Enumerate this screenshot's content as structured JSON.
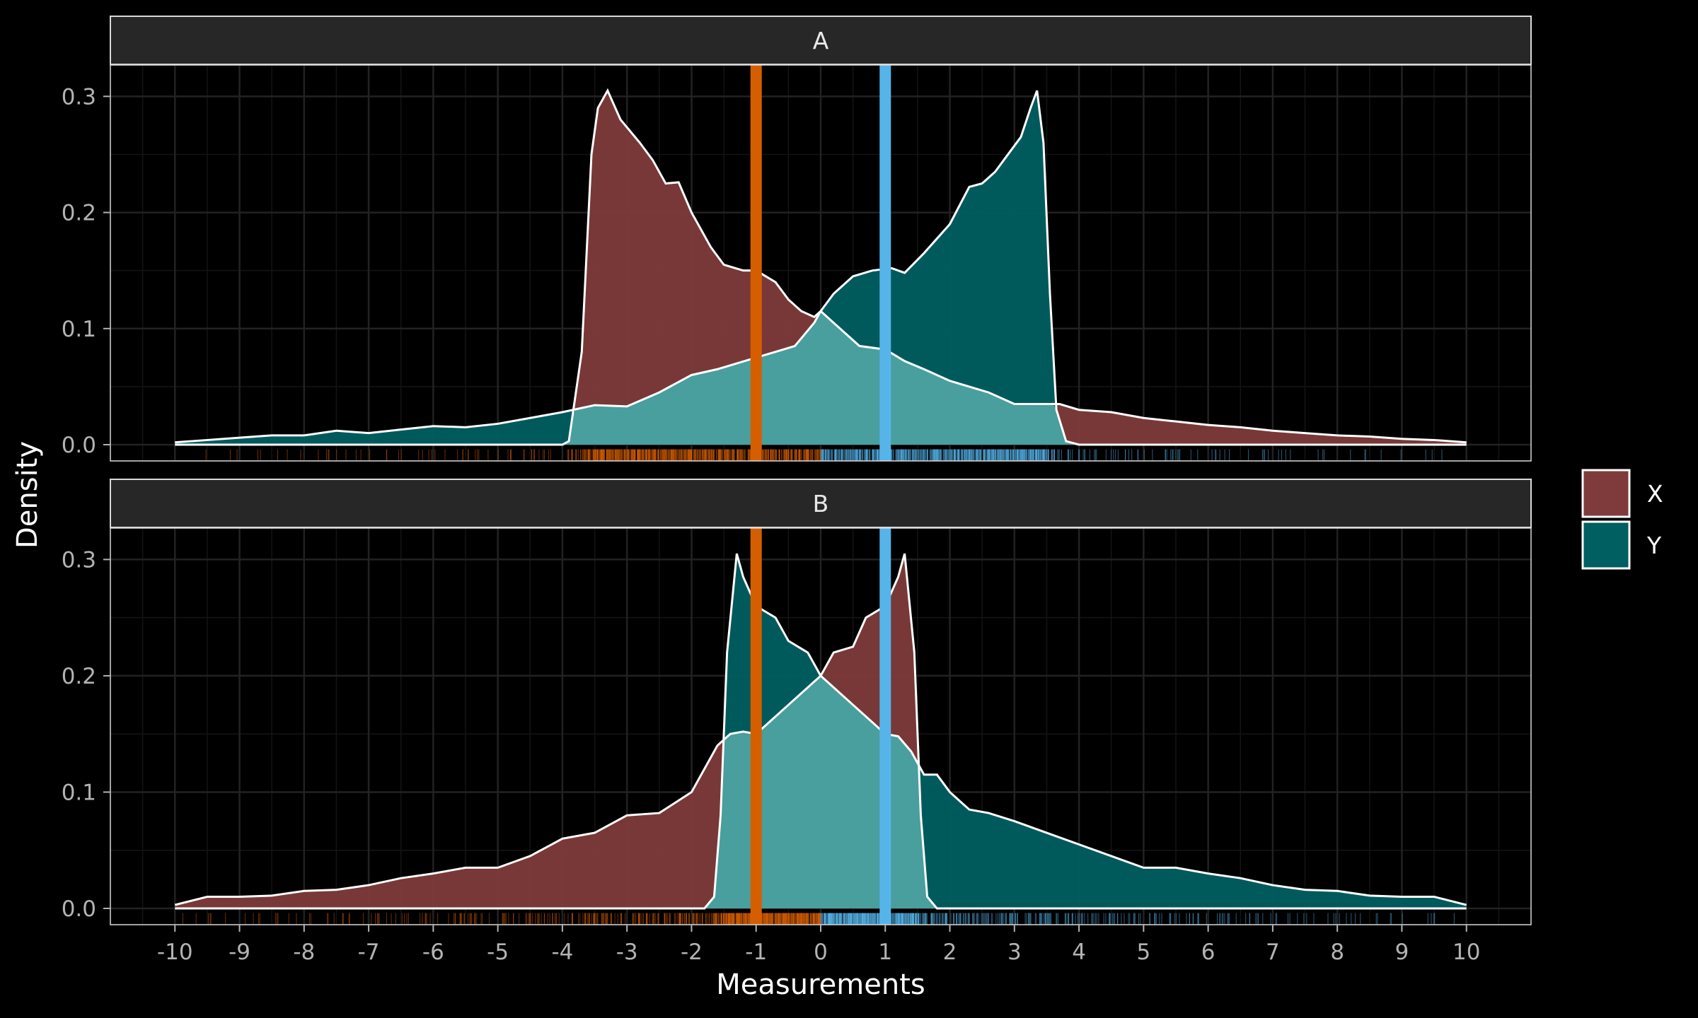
{
  "chart_data": {
    "type": "area",
    "subtype": "faceted-density",
    "xlabel": "Measurements",
    "ylabel": "Density",
    "xlim": [
      -11,
      11
    ],
    "ylim": [
      -0.014,
      0.327
    ],
    "x_ticks": [
      -10,
      -9,
      -8,
      -7,
      -6,
      -5,
      -4,
      -3,
      -2,
      -1,
      0,
      1,
      2,
      3,
      4,
      5,
      6,
      7,
      8,
      9,
      10
    ],
    "x_tick_labels": [
      "-10",
      "-9",
      "-8",
      "-7",
      "-6",
      "-5",
      "-4",
      "-3",
      "-2",
      "-1",
      "0",
      "1",
      "2",
      "3",
      "4",
      "5",
      "6",
      "7",
      "8",
      "9",
      "10"
    ],
    "y_ticks": [
      0.0,
      0.1,
      0.2,
      0.3
    ],
    "y_tick_labels": [
      "0.0",
      "0.1",
      "0.2",
      "0.3"
    ],
    "grid": true,
    "legend_position": "right",
    "legend": [
      {
        "name": "X",
        "color": "#7f3b3b"
      },
      {
        "name": "Y",
        "color": "#005f61"
      }
    ],
    "colors": {
      "background": "#000000",
      "strip_fill": "#272727",
      "outline": "#ffffff",
      "overlap": "#5fb5b2",
      "vline_orange": "#d55e00",
      "vline_blue": "#56b4e9"
    },
    "vlines": [
      {
        "x": -1,
        "color": "#d55e00"
      },
      {
        "x": 1,
        "color": "#56b4e9"
      }
    ],
    "panels": [
      {
        "label": "A",
        "series": [
          {
            "name": "X",
            "points": [
              [
                -10,
                0
              ],
              [
                -9.5,
                0
              ],
              [
                -8,
                0
              ],
              [
                -6,
                0
              ],
              [
                -4,
                0
              ],
              [
                -3.9,
                0.003
              ],
              [
                -3.7,
                0.08
              ],
              [
                -3.55,
                0.25
              ],
              [
                -3.45,
                0.29
              ],
              [
                -3.3,
                0.305
              ],
              [
                -3.1,
                0.28
              ],
              [
                -2.8,
                0.26
              ],
              [
                -2.6,
                0.245
              ],
              [
                -2.4,
                0.225
              ],
              [
                -2.2,
                0.226
              ],
              [
                -2,
                0.2
              ],
              [
                -1.7,
                0.17
              ],
              [
                -1.5,
                0.155
              ],
              [
                -1.2,
                0.15
              ],
              [
                -1,
                0.15
              ],
              [
                -0.7,
                0.14
              ],
              [
                -0.5,
                0.125
              ],
              [
                -0.3,
                0.115
              ],
              [
                -0.1,
                0.11
              ],
              [
                0,
                0.115
              ],
              [
                0.2,
                0.105
              ],
              [
                0.4,
                0.095
              ],
              [
                0.6,
                0.085
              ],
              [
                1,
                0.082
              ],
              [
                1.3,
                0.072
              ],
              [
                1.6,
                0.065
              ],
              [
                2,
                0.055
              ],
              [
                2.3,
                0.05
              ],
              [
                2.6,
                0.045
              ],
              [
                3,
                0.035
              ],
              [
                3.4,
                0.035
              ],
              [
                3.7,
                0.035
              ],
              [
                4,
                0.03
              ],
              [
                4.5,
                0.028
              ],
              [
                5,
                0.023
              ],
              [
                5.5,
                0.02
              ],
              [
                6,
                0.017
              ],
              [
                6.5,
                0.015
              ],
              [
                7,
                0.012
              ],
              [
                7.5,
                0.01
              ],
              [
                8,
                0.008
              ],
              [
                8.5,
                0.007
              ],
              [
                9,
                0.005
              ],
              [
                9.5,
                0.004
              ],
              [
                10,
                0.002
              ]
            ]
          },
          {
            "name": "Y",
            "points": [
              [
                -10,
                0.002
              ],
              [
                -9.5,
                0.004
              ],
              [
                -9,
                0.006
              ],
              [
                -8.5,
                0.008
              ],
              [
                -8,
                0.008
              ],
              [
                -7.5,
                0.012
              ],
              [
                -7,
                0.01
              ],
              [
                -6.5,
                0.013
              ],
              [
                -6,
                0.016
              ],
              [
                -5.5,
                0.015
              ],
              [
                -5,
                0.018
              ],
              [
                -4.5,
                0.023
              ],
              [
                -4,
                0.028
              ],
              [
                -3.5,
                0.034
              ],
              [
                -3,
                0.033
              ],
              [
                -2.5,
                0.045
              ],
              [
                -2,
                0.06
              ],
              [
                -1.6,
                0.065
              ],
              [
                -1.3,
                0.07
              ],
              [
                -1,
                0.075
              ],
              [
                -0.7,
                0.08
              ],
              [
                -0.4,
                0.085
              ],
              [
                -0.1,
                0.105
              ],
              [
                0,
                0.115
              ],
              [
                0.2,
                0.13
              ],
              [
                0.5,
                0.145
              ],
              [
                0.8,
                0.15
              ],
              [
                1.1,
                0.152
              ],
              [
                1.3,
                0.148
              ],
              [
                1.6,
                0.165
              ],
              [
                2,
                0.19
              ],
              [
                2.3,
                0.222
              ],
              [
                2.5,
                0.225
              ],
              [
                2.7,
                0.235
              ],
              [
                2.9,
                0.25
              ],
              [
                3.1,
                0.265
              ],
              [
                3.25,
                0.29
              ],
              [
                3.35,
                0.305
              ],
              [
                3.45,
                0.26
              ],
              [
                3.55,
                0.13
              ],
              [
                3.65,
                0.03
              ],
              [
                3.8,
                0.003
              ],
              [
                4,
                0
              ],
              [
                6,
                0
              ],
              [
                8,
                0
              ],
              [
                10,
                0
              ]
            ]
          }
        ]
      },
      {
        "label": "B",
        "series": [
          {
            "name": "X",
            "points": [
              [
                -10,
                0.003
              ],
              [
                -9.5,
                0.01
              ],
              [
                -9,
                0.01
              ],
              [
                -8.5,
                0.011
              ],
              [
                -8,
                0.015
              ],
              [
                -7.5,
                0.016
              ],
              [
                -7,
                0.02
              ],
              [
                -6.5,
                0.026
              ],
              [
                -6,
                0.03
              ],
              [
                -5.5,
                0.035
              ],
              [
                -5,
                0.035
              ],
              [
                -4.5,
                0.045
              ],
              [
                -4,
                0.06
              ],
              [
                -3.5,
                0.065
              ],
              [
                -3,
                0.08
              ],
              [
                -2.5,
                0.082
              ],
              [
                -2,
                0.1
              ],
              [
                -1.8,
                0.12
              ],
              [
                -1.6,
                0.14
              ],
              [
                -1.4,
                0.15
              ],
              [
                -1.2,
                0.152
              ],
              [
                -1,
                0.15
              ],
              [
                -0.8,
                0.16
              ],
              [
                -0.5,
                0.175
              ],
              [
                -0.2,
                0.19
              ],
              [
                0,
                0.2
              ],
              [
                0.2,
                0.22
              ],
              [
                0.5,
                0.225
              ],
              [
                0.7,
                0.25
              ],
              [
                1,
                0.26
              ],
              [
                1.2,
                0.285
              ],
              [
                1.3,
                0.305
              ],
              [
                1.45,
                0.22
              ],
              [
                1.55,
                0.08
              ],
              [
                1.65,
                0.01
              ],
              [
                1.8,
                0
              ],
              [
                4,
                0
              ],
              [
                7,
                0
              ],
              [
                10,
                0
              ]
            ]
          },
          {
            "name": "Y",
            "points": [
              [
                -10,
                0
              ],
              [
                -7,
                0
              ],
              [
                -4,
                0
              ],
              [
                -1.8,
                0
              ],
              [
                -1.65,
                0.01
              ],
              [
                -1.55,
                0.08
              ],
              [
                -1.45,
                0.22
              ],
              [
                -1.3,
                0.305
              ],
              [
                -1.2,
                0.285
              ],
              [
                -1,
                0.26
              ],
              [
                -0.7,
                0.25
              ],
              [
                -0.5,
                0.23
              ],
              [
                -0.2,
                0.22
              ],
              [
                0,
                0.2
              ],
              [
                0.2,
                0.19
              ],
              [
                0.5,
                0.175
              ],
              [
                0.8,
                0.16
              ],
              [
                1,
                0.15
              ],
              [
                1.2,
                0.148
              ],
              [
                1.4,
                0.135
              ],
              [
                1.6,
                0.115
              ],
              [
                1.8,
                0.115
              ],
              [
                2,
                0.1
              ],
              [
                2.3,
                0.085
              ],
              [
                2.6,
                0.082
              ],
              [
                3,
                0.075
              ],
              [
                3.5,
                0.065
              ],
              [
                4,
                0.055
              ],
              [
                4.5,
                0.045
              ],
              [
                5,
                0.035
              ],
              [
                5.5,
                0.035
              ],
              [
                6,
                0.03
              ],
              [
                6.5,
                0.026
              ],
              [
                7,
                0.02
              ],
              [
                7.5,
                0.016
              ],
              [
                8,
                0.015
              ],
              [
                8.5,
                0.011
              ],
              [
                9,
                0.01
              ],
              [
                9.5,
                0.01
              ],
              [
                10,
                0.003
              ]
            ]
          }
        ]
      }
    ]
  }
}
